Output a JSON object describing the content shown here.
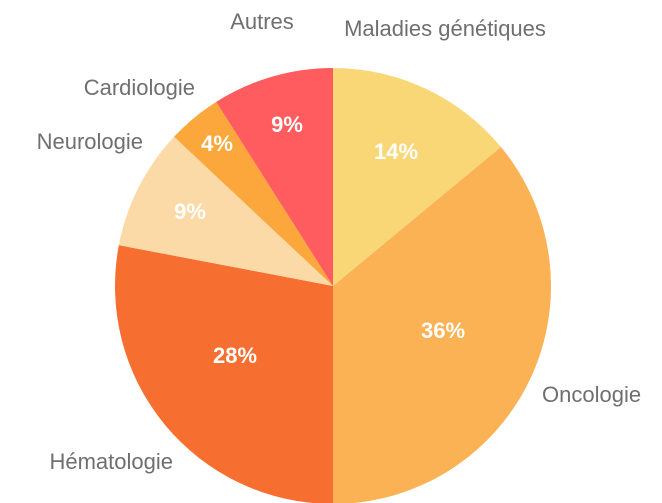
{
  "chart_data": {
    "type": "pie",
    "categories": [
      "Maladies génétiques",
      "Oncologie",
      "Hématologie",
      "Neurologie",
      "Cardiologie",
      "Autres"
    ],
    "values": [
      14,
      36,
      28,
      9,
      4,
      9
    ],
    "value_labels": [
      "14%",
      "36%",
      "28%",
      "9%",
      "4%",
      "9%"
    ],
    "colors": [
      "#FAD776",
      "#FBB254",
      "#F76E31",
      "#FCDAA7",
      "#FBA73B",
      "#FE5C5E"
    ]
  }
}
